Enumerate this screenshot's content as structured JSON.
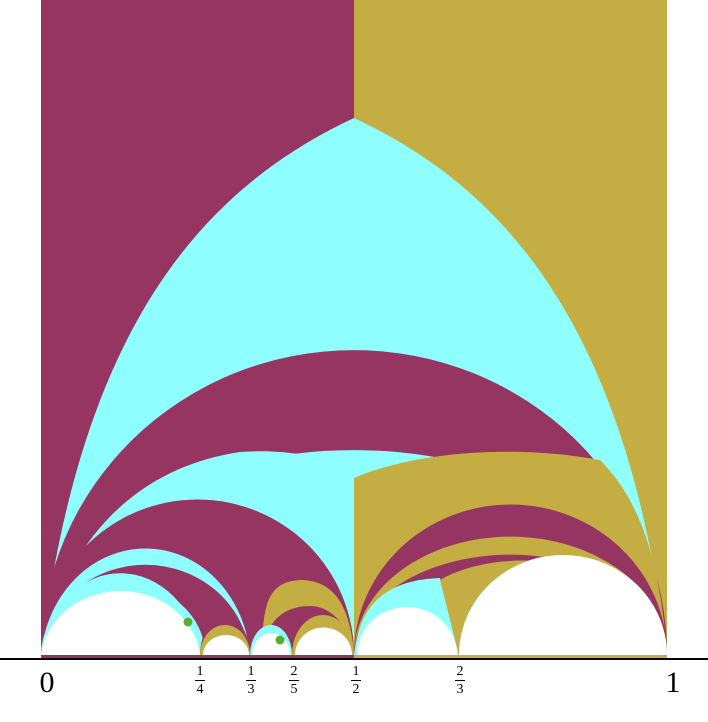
{
  "colors": {
    "magenta": "#973562",
    "gold": "#c4ad43",
    "cyan": "#8ffffe",
    "white": "#ffffff",
    "axis": "#000000",
    "marker": "#5cac32"
  },
  "axis_labels": {
    "zero": "0",
    "one": "1",
    "quarter": {
      "num": "1",
      "den": "4"
    },
    "third": {
      "num": "1",
      "den": "3"
    },
    "two_fifths": {
      "num": "2",
      "den": "5"
    },
    "half": {
      "num": "1",
      "den": "2"
    },
    "two_thirds": {
      "num": "2",
      "den": "3"
    }
  },
  "markers": [
    "marker-a",
    "marker-b"
  ]
}
